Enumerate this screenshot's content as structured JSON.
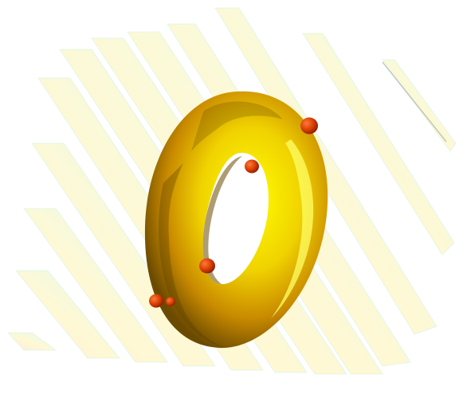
{
  "scene": {
    "description_free": true,
    "colors": {
      "background": "#ffffff",
      "torus_highlight": "#ffff00",
      "torus_mid": "#e6b800",
      "torus_shadow": "#6b4a00",
      "marker": "#d63c00",
      "marker_highlight": "#ff7a3a",
      "plane_warm": "#ffd7c2",
      "plane_mid": "#fff3b0",
      "plane_cool": "#c9f7e6",
      "plane_edge": "#aee9d8"
    },
    "plane_count": 12,
    "marker_count": 5,
    "icons": [
      "torus-icon",
      "marker-icon",
      "slice-plane-icon"
    ]
  }
}
